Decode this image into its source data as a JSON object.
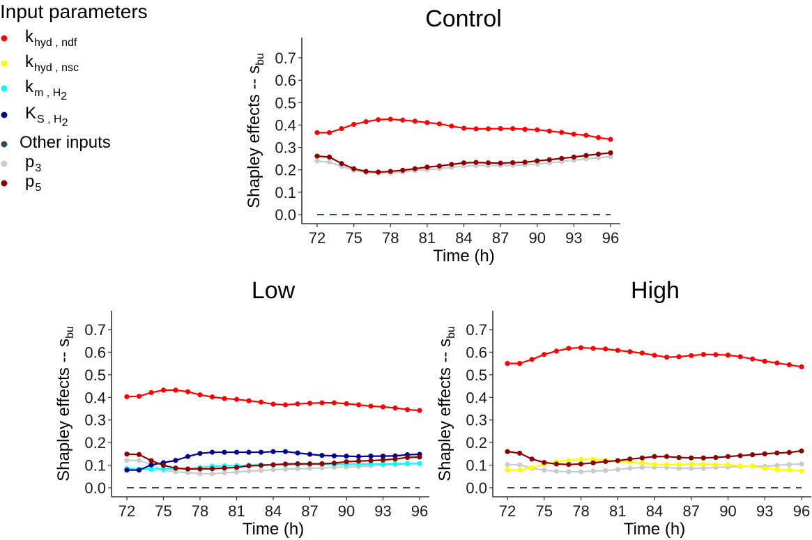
{
  "chart_data": {
    "type": "line",
    "legend": {
      "title": "Input parameters",
      "placement": "top-left",
      "entries": [
        {
          "key": "khyd_ndf",
          "main": "k",
          "sub": "hyd , ndf",
          "sub2": "",
          "color": "#ff0000"
        },
        {
          "key": "khyd_nsc",
          "main": "k",
          "sub": "hyd , nsc",
          "sub2": "",
          "color": "#ffff00"
        },
        {
          "key": "km_H2",
          "main": "k",
          "sub": "m , H",
          "sub2": "2",
          "color": "#00ffff"
        },
        {
          "key": "KS_H2",
          "main": "K",
          "sub": "S , H",
          "sub2": "2",
          "color": "#00008b"
        },
        {
          "key": "other",
          "main": "Other inputs",
          "sub": "",
          "sub2": "",
          "color": "#2f4f4f"
        },
        {
          "key": "p3",
          "main": "p",
          "sub": "3",
          "sub2": "",
          "color": "#c8cccc"
        },
        {
          "key": "p5",
          "main": "p",
          "sub": "5",
          "sub2": "",
          "color": "#8b0000"
        }
      ]
    },
    "x": [
      72,
      73,
      74,
      75,
      76,
      77,
      78,
      79,
      80,
      81,
      82,
      83,
      84,
      85,
      86,
      87,
      88,
      89,
      90,
      91,
      92,
      93,
      94,
      95,
      96
    ],
    "xticks": [
      72,
      75,
      78,
      81,
      84,
      87,
      90,
      93,
      96
    ],
    "yticks": [
      "0.0",
      "0.1",
      "0.2",
      "0.3",
      "0.4",
      "0.5",
      "0.6",
      "0.7"
    ],
    "ylim": [
      -0.035,
      0.78
    ],
    "xlim": [
      70.8,
      97.2
    ],
    "xlabel": "Time (h)",
    "ylabel_main": "Shapley effects  --  s",
    "ylabel_sub": "bu",
    "grid": false,
    "reference_line": {
      "y": 0.0,
      "style": "dashed",
      "color": "#2f4f4f",
      "series": "Other inputs"
    },
    "panels": [
      {
        "title": "Control",
        "series": [
          {
            "key": "p3",
            "values": [
              0.239,
              0.235,
              0.215,
              0.198,
              0.187,
              0.185,
              0.186,
              0.19,
              0.196,
              0.2,
              0.205,
              0.211,
              0.217,
              0.219,
              0.219,
              0.219,
              0.22,
              0.222,
              0.226,
              0.231,
              0.237,
              0.243,
              0.249,
              0.254,
              0.259
            ]
          },
          {
            "key": "p5",
            "values": [
              0.261,
              0.257,
              0.228,
              0.205,
              0.193,
              0.19,
              0.193,
              0.198,
              0.205,
              0.212,
              0.217,
              0.224,
              0.231,
              0.233,
              0.231,
              0.23,
              0.232,
              0.234,
              0.24,
              0.245,
              0.251,
              0.257,
              0.264,
              0.27,
              0.276
            ]
          },
          {
            "key": "khyd_ndf",
            "values": [
              0.366,
              0.366,
              0.384,
              0.403,
              0.415,
              0.424,
              0.426,
              0.422,
              0.417,
              0.411,
              0.405,
              0.395,
              0.386,
              0.383,
              0.383,
              0.384,
              0.384,
              0.381,
              0.379,
              0.373,
              0.367,
              0.359,
              0.354,
              0.344,
              0.336
            ]
          }
        ]
      },
      {
        "title": "Low",
        "series": [
          {
            "key": "p3",
            "values": [
              0.121,
              0.121,
              0.102,
              0.077,
              0.071,
              0.067,
              0.062,
              0.062,
              0.066,
              0.069,
              0.074,
              0.076,
              0.08,
              0.082,
              0.084,
              0.086,
              0.088,
              0.09,
              0.092,
              0.094,
              0.097,
              0.1,
              0.103,
              0.105,
              0.107
            ]
          },
          {
            "key": "km_H2",
            "values": [
              0.085,
              0.083,
              0.082,
              0.083,
              0.083,
              0.084,
              0.09,
              0.095,
              0.097,
              0.098,
              0.1,
              0.101,
              0.102,
              0.102,
              0.102,
              0.103,
              0.103,
              0.104,
              0.104,
              0.105,
              0.105,
              0.106,
              0.106,
              0.107,
              0.107
            ]
          },
          {
            "key": "KS_H2",
            "values": [
              0.078,
              0.078,
              0.101,
              0.111,
              0.121,
              0.138,
              0.152,
              0.157,
              0.157,
              0.157,
              0.157,
              0.157,
              0.16,
              0.16,
              0.154,
              0.148,
              0.143,
              0.141,
              0.14,
              0.138,
              0.14,
              0.14,
              0.141,
              0.146,
              0.148
            ]
          },
          {
            "key": "p5",
            "values": [
              0.149,
              0.147,
              0.12,
              0.099,
              0.087,
              0.083,
              0.083,
              0.084,
              0.087,
              0.09,
              0.097,
              0.099,
              0.102,
              0.105,
              0.106,
              0.106,
              0.106,
              0.109,
              0.115,
              0.118,
              0.12,
              0.123,
              0.127,
              0.134,
              0.136
            ]
          },
          {
            "key": "khyd_ndf",
            "values": [
              0.403,
              0.405,
              0.421,
              0.432,
              0.432,
              0.425,
              0.411,
              0.402,
              0.395,
              0.391,
              0.385,
              0.379,
              0.37,
              0.367,
              0.371,
              0.374,
              0.376,
              0.376,
              0.372,
              0.367,
              0.361,
              0.358,
              0.353,
              0.346,
              0.342
            ]
          }
        ]
      },
      {
        "title": "High",
        "series": [
          {
            "key": "p3",
            "values": [
              0.102,
              0.102,
              0.086,
              0.078,
              0.073,
              0.071,
              0.071,
              0.074,
              0.076,
              0.081,
              0.086,
              0.09,
              0.09,
              0.09,
              0.086,
              0.086,
              0.086,
              0.09,
              0.092,
              0.094,
              0.096,
              0.094,
              0.099,
              0.103,
              0.105
            ]
          },
          {
            "key": "khyd_nsc",
            "values": [
              0.078,
              0.078,
              0.089,
              0.105,
              0.116,
              0.121,
              0.126,
              0.126,
              0.123,
              0.118,
              0.114,
              0.109,
              0.104,
              0.103,
              0.103,
              0.105,
              0.105,
              0.103,
              0.102,
              0.096,
              0.095,
              0.086,
              0.081,
              0.08,
              0.074
            ]
          },
          {
            "key": "p5",
            "values": [
              0.16,
              0.153,
              0.127,
              0.112,
              0.105,
              0.103,
              0.105,
              0.11,
              0.116,
              0.12,
              0.127,
              0.132,
              0.138,
              0.138,
              0.134,
              0.132,
              0.132,
              0.134,
              0.138,
              0.142,
              0.146,
              0.15,
              0.154,
              0.156,
              0.163
            ]
          },
          {
            "key": "khyd_ndf",
            "values": [
              0.55,
              0.55,
              0.568,
              0.59,
              0.605,
              0.617,
              0.62,
              0.617,
              0.614,
              0.608,
              0.602,
              0.596,
              0.586,
              0.578,
              0.58,
              0.585,
              0.59,
              0.589,
              0.587,
              0.58,
              0.57,
              0.56,
              0.552,
              0.544,
              0.535
            ]
          }
        ]
      }
    ]
  }
}
